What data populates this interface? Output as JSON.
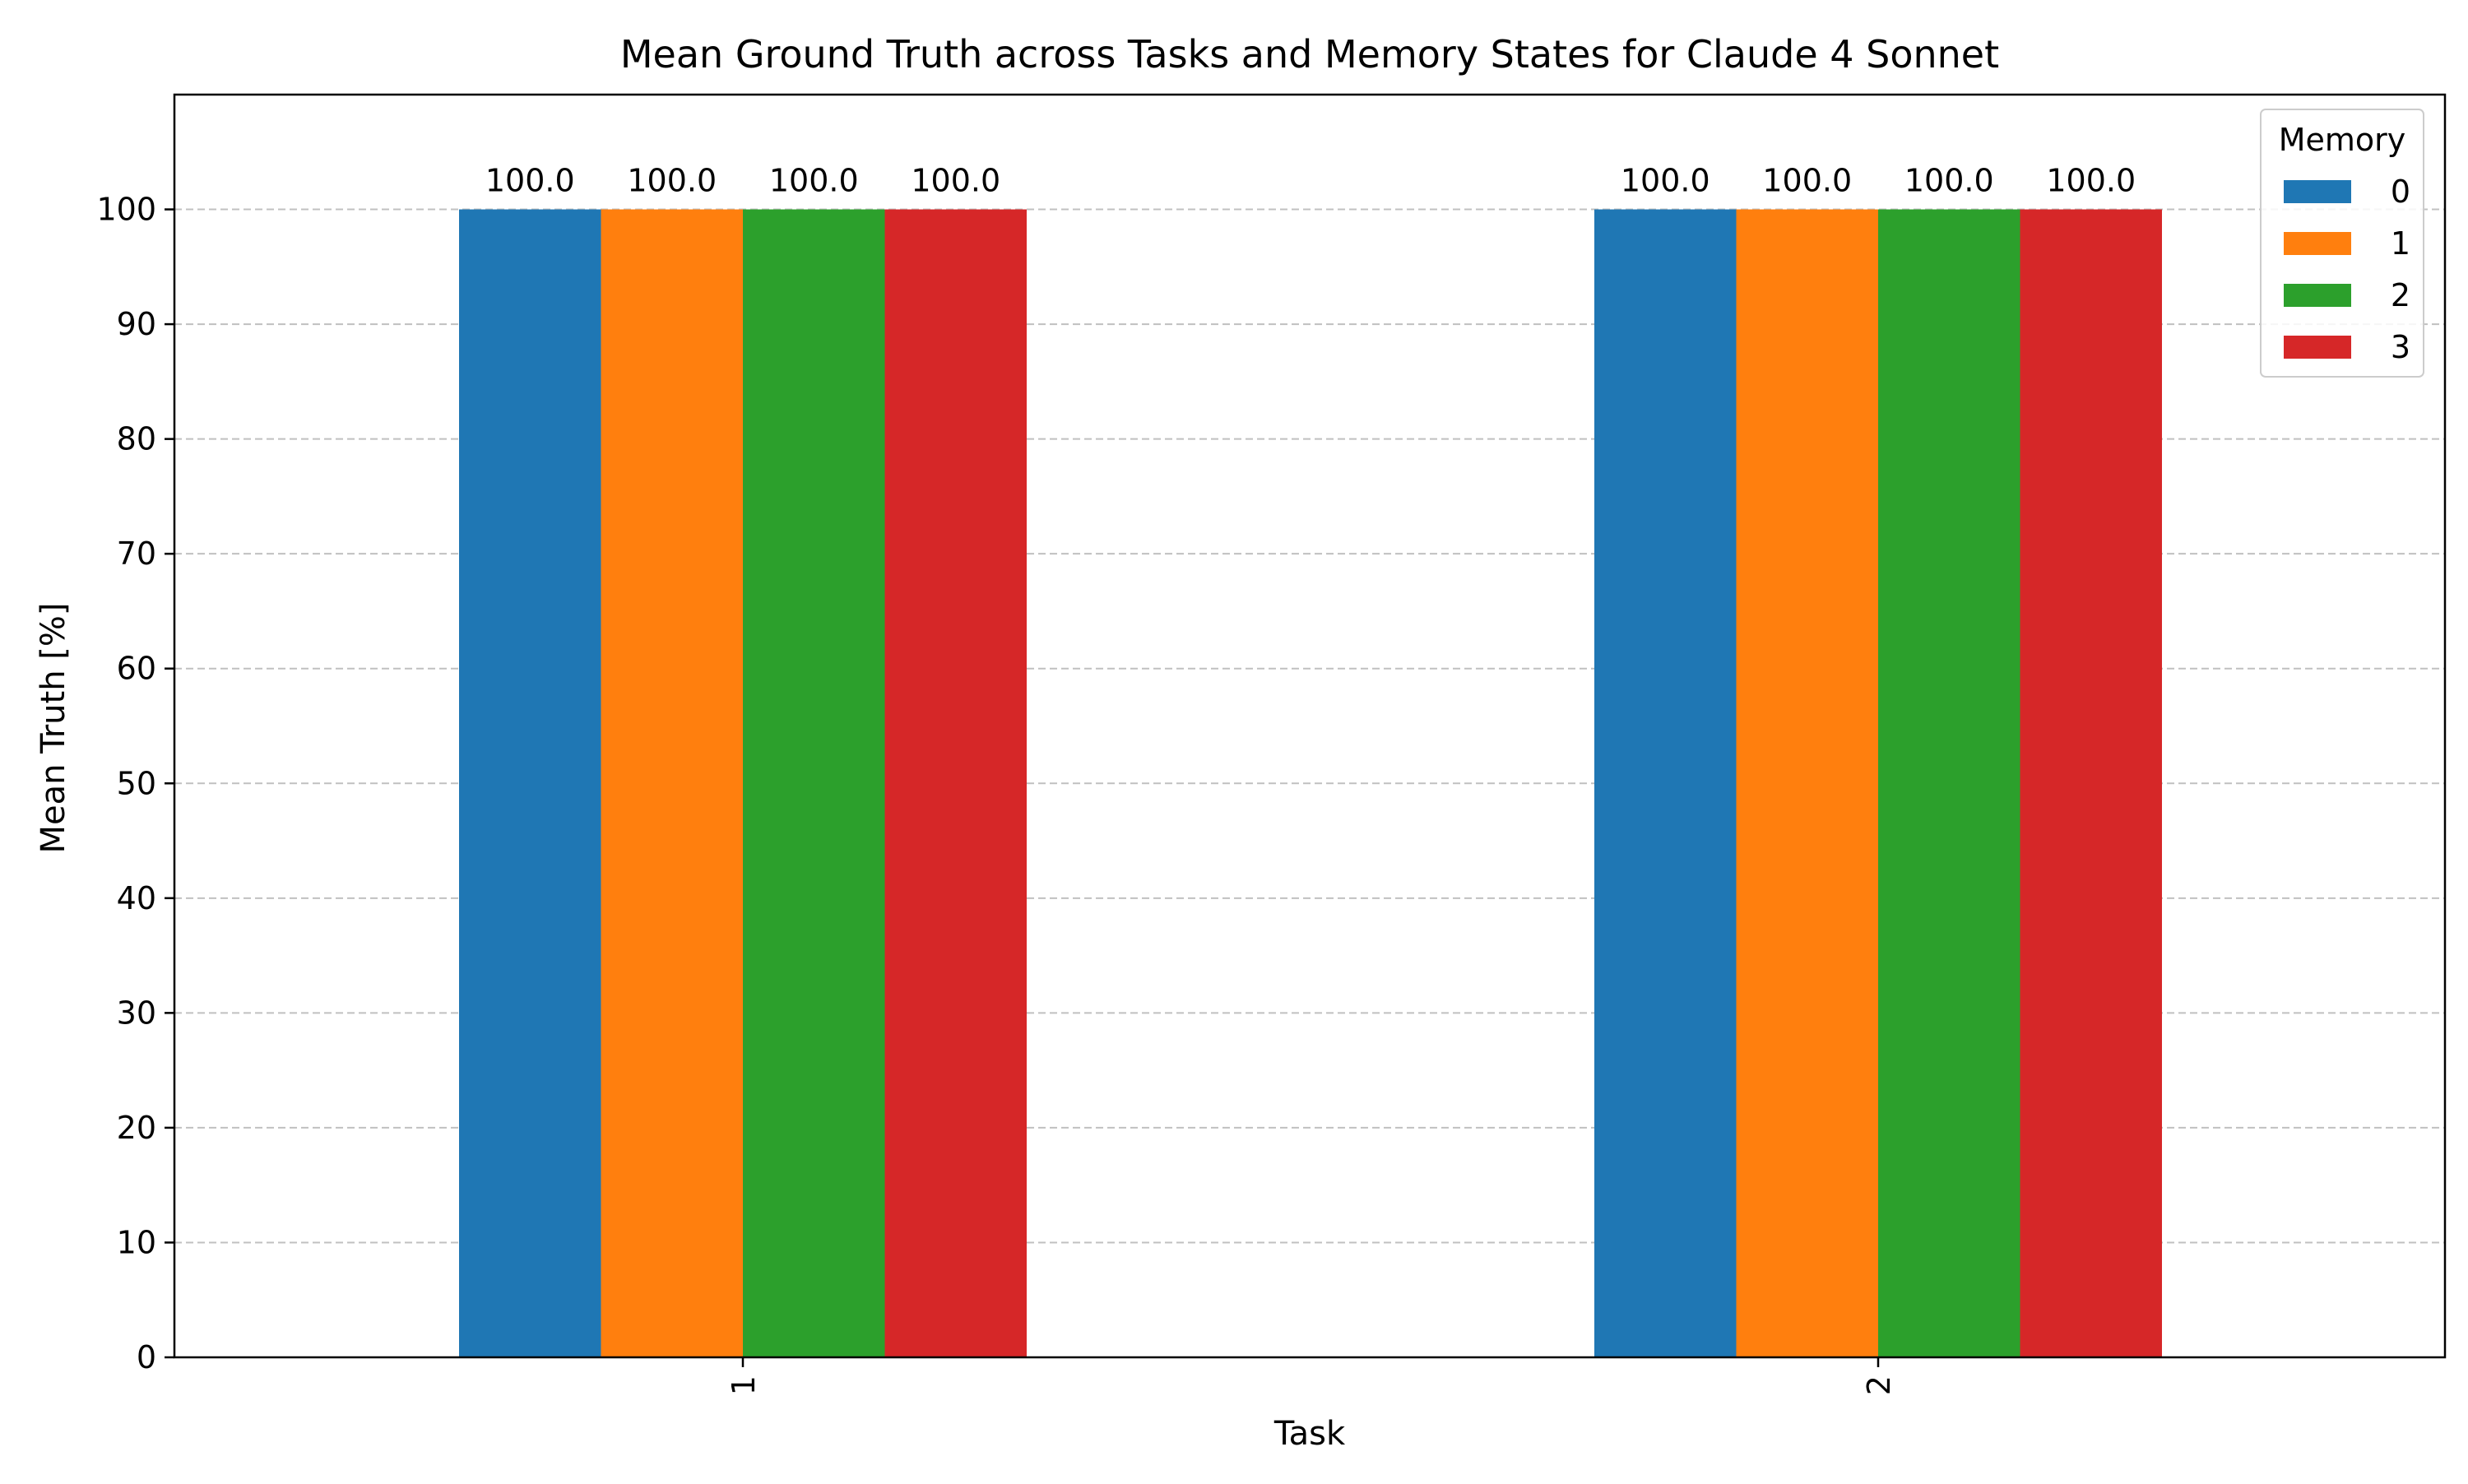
{
  "chart_data": {
    "type": "bar",
    "title": "Mean Ground Truth across Tasks and Memory States for Claude 4 Sonnet",
    "xlabel": "Task",
    "ylabel": "Mean Truth [%]",
    "categories": [
      "1",
      "2"
    ],
    "series": [
      {
        "name": "0",
        "values": [
          100.0,
          100.0
        ],
        "color": "#1f77b4"
      },
      {
        "name": "1",
        "values": [
          100.0,
          100.0
        ],
        "color": "#ff7f0e"
      },
      {
        "name": "2",
        "values": [
          100.0,
          100.0
        ],
        "color": "#2ca02c"
      },
      {
        "name": "3",
        "values": [
          100.0,
          100.0
        ],
        "color": "#d62728"
      }
    ],
    "data_labels": [
      [
        "100.0",
        "100.0",
        "100.0",
        "100.0"
      ],
      [
        "100.0",
        "100.0",
        "100.0",
        "100.0"
      ]
    ],
    "ylim": [
      0,
      110
    ],
    "yticks": [
      0,
      10,
      20,
      30,
      40,
      50,
      60,
      70,
      80,
      90,
      100
    ],
    "ytick_labels": [
      "0",
      "10",
      "20",
      "30",
      "40",
      "50",
      "60",
      "70",
      "80",
      "90",
      "100"
    ],
    "grid": "y-dashed",
    "legend_title": "Memory",
    "legend_position": "top-right",
    "xtick_rotation": "vertical"
  }
}
